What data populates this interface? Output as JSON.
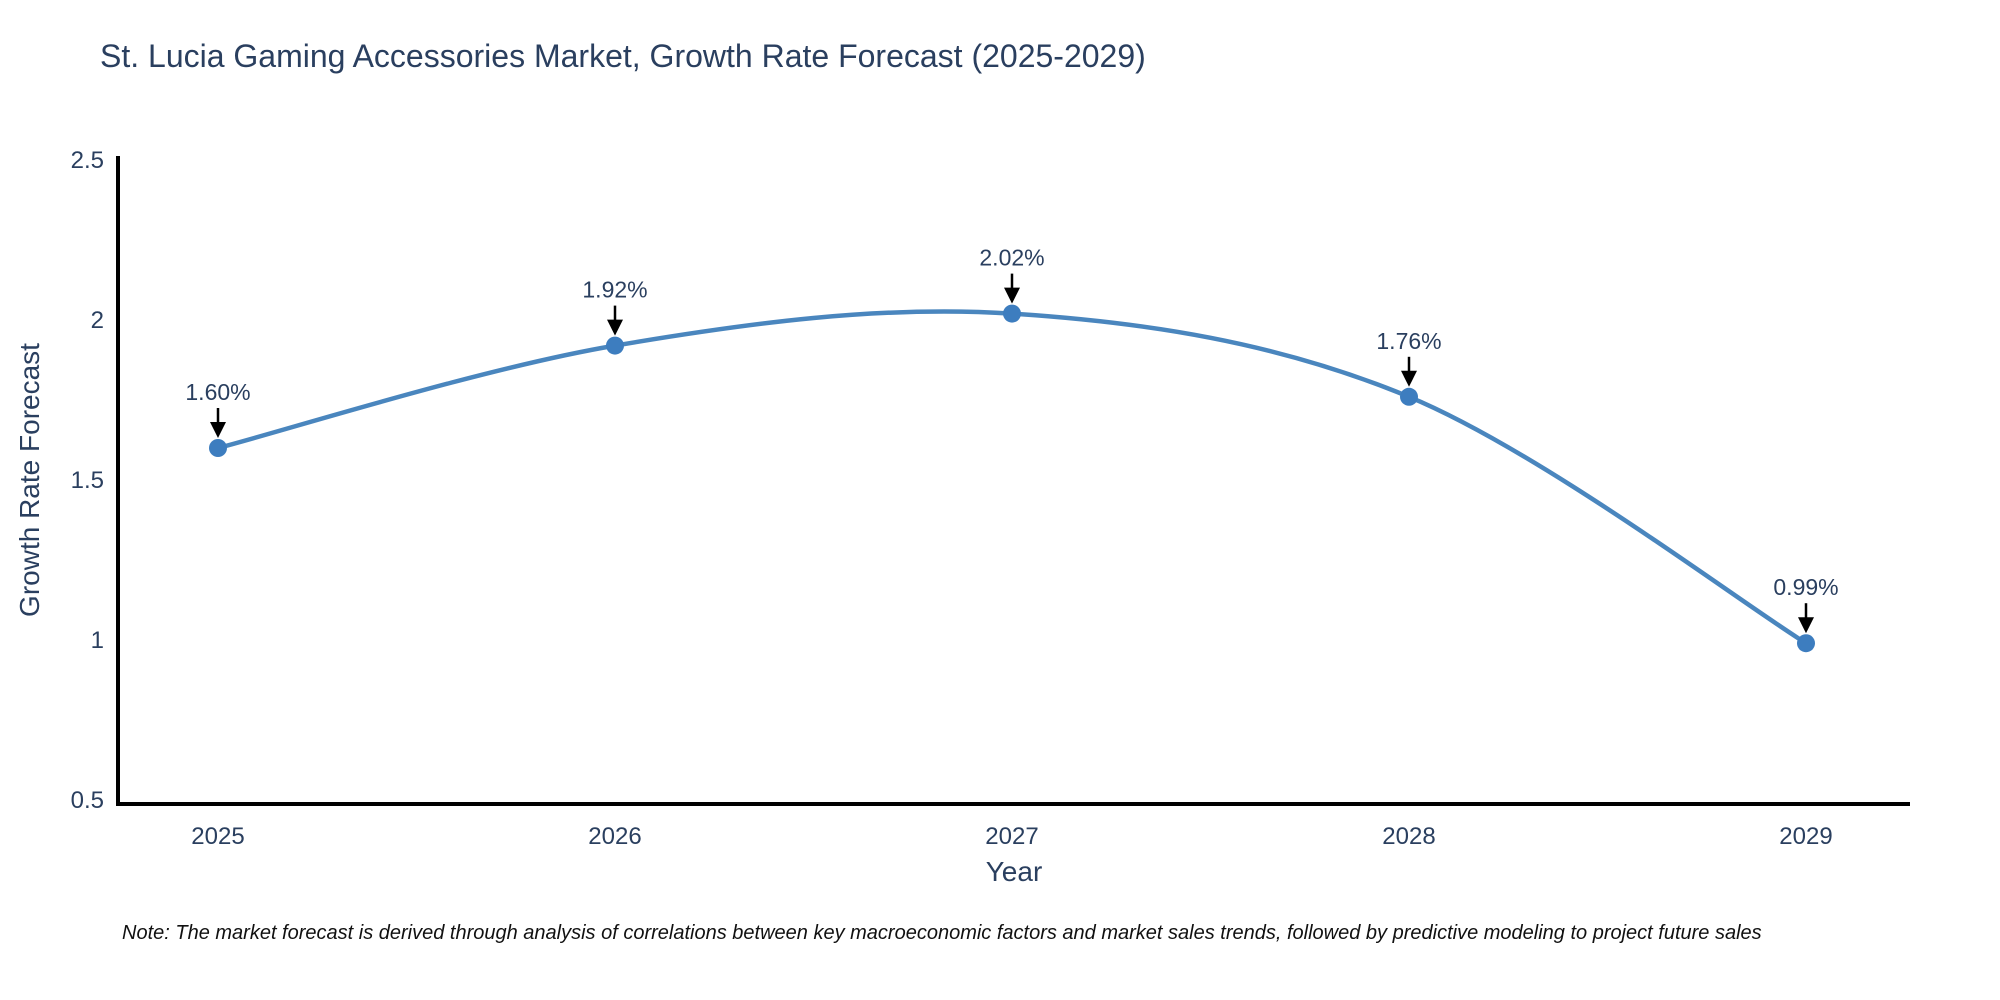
{
  "chart_data": {
    "type": "line",
    "title": "St. Lucia Gaming Accessories Market, Growth Rate Forecast (2025-2029)",
    "xlabel": "Year",
    "ylabel": "Growth Rate Forecast",
    "x": [
      2025,
      2026,
      2027,
      2028,
      2029
    ],
    "values": [
      1.6,
      1.92,
      2.02,
      1.76,
      0.99
    ],
    "point_labels": [
      "1.60%",
      "1.92%",
      "2.02%",
      "1.76%",
      "0.99%"
    ],
    "series_name": "Growth Rate Forecast",
    "line_shape": "spline",
    "grid": false,
    "legend_position": "none",
    "ylim": [
      0.5,
      2.5
    ],
    "yticks": [
      "2.5",
      "2",
      "1.5",
      "1",
      "0.5"
    ],
    "ytick_values": [
      2.5,
      2,
      1.5,
      1,
      0.5
    ],
    "xticks": [
      "2025",
      "2026",
      "2027",
      "2028",
      "2029"
    ],
    "colors": {
      "line": "#4a86be",
      "marker": "#3d7dbf",
      "axis": "#000000",
      "text": "#2a3f5f",
      "annotation_arrow": "#000000"
    },
    "note": "Note: The market forecast is derived through analysis of correlations between key macroeconomic factors and market sales trends, followed by predictive modeling to project future sales"
  }
}
